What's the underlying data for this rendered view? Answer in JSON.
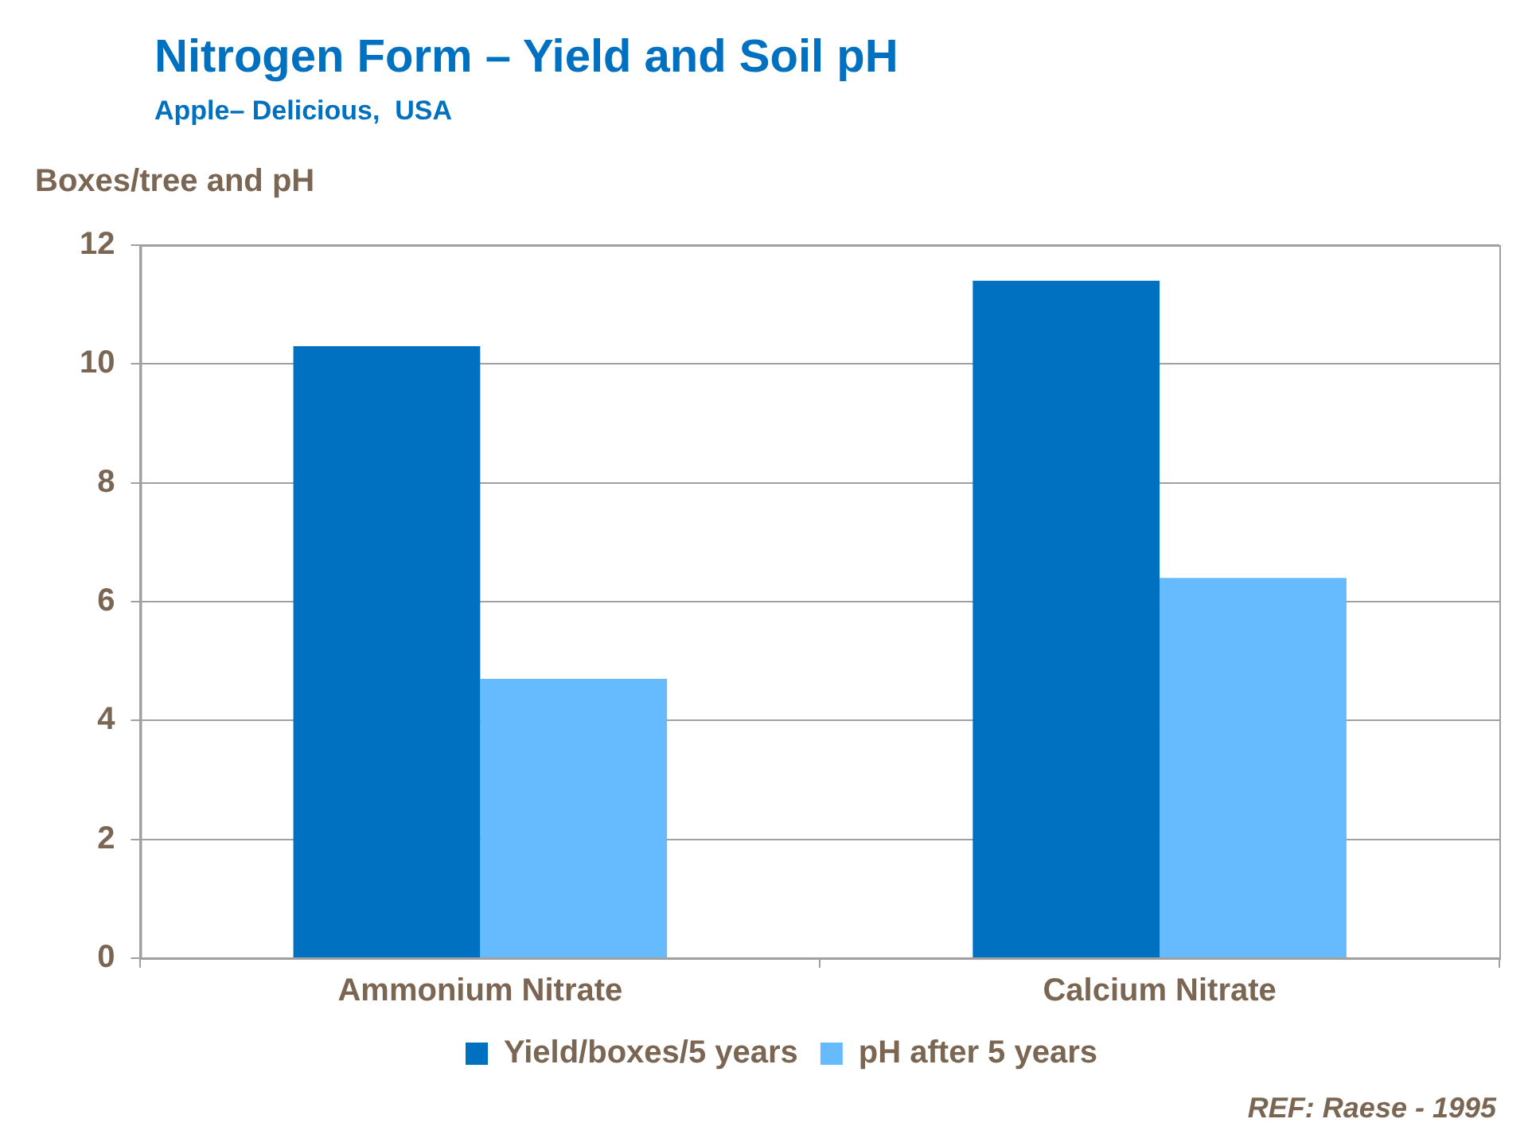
{
  "chart_data": {
    "type": "bar",
    "title": "Nitrogen Form – Yield and Soil pH",
    "subtitle": "Apple– Delicious,  USA",
    "ylabel": "Boxes/tree and pH",
    "categories": [
      "Ammonium Nitrate",
      "Calcium Nitrate"
    ],
    "series": [
      {
        "name": "Yield/boxes/5 years",
        "color": "#0070c0",
        "values": [
          10.3,
          11.4
        ]
      },
      {
        "name": "pH after 5 years",
        "color": "#66bbff",
        "values": [
          4.7,
          6.4
        ]
      }
    ],
    "ylim": [
      0,
      12
    ],
    "yticks": [
      0,
      2,
      4,
      6,
      8,
      10,
      12
    ],
    "grid": "y",
    "legend": "bottom",
    "annotations": [
      "REF: Raese - 1995"
    ]
  }
}
